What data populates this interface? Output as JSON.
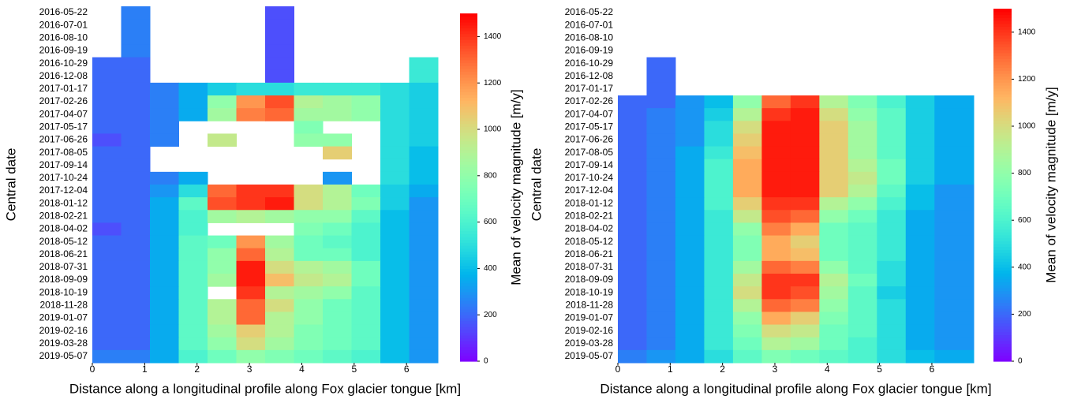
{
  "chart_data": [
    {
      "type": "heatmap",
      "colormap": "rainbow",
      "xlabel": "Distance along a longitudinal profile along Fox glacier tongue [km]",
      "ylabel": "Central date",
      "colorbar_label": "Mean of velocity magnitude [m/y]",
      "categories": [
        "2016-05-22",
        "2016-07-01",
        "2016-08-10",
        "2016-09-19",
        "2016-10-29",
        "2016-12-08",
        "2017-01-17",
        "2017-02-26",
        "2017-04-07",
        "2017-05-17",
        "2017-06-26",
        "2017-08-05",
        "2017-09-14",
        "2017-10-24",
        "2017-12-04",
        "2018-01-12",
        "2018-02-21",
        "2018-04-02",
        "2018-05-12",
        "2018-06-21",
        "2018-07-31",
        "2018-09-09",
        "2018-10-19",
        "2018-11-28",
        "2019-01-07",
        "2019-02-16",
        "2019-03-28",
        "2019-05-07"
      ],
      "x_edges": [
        0,
        0.55,
        1.1,
        1.65,
        2.2,
        2.75,
        3.3,
        3.85,
        4.4,
        4.95,
        5.5,
        6.05,
        6.6
      ],
      "xlim": [
        0,
        6.6
      ],
      "xticks": [
        0,
        1,
        2,
        3,
        4,
        5,
        6
      ],
      "zlim": [
        0,
        1500
      ],
      "zticks": [
        0,
        200,
        400,
        600,
        800,
        1000,
        1200,
        1400
      ],
      "values": [
        [
          null,
          250,
          null,
          null,
          null,
          null,
          150,
          null,
          null,
          null,
          null,
          null
        ],
        [
          null,
          250,
          null,
          null,
          null,
          null,
          150,
          null,
          null,
          null,
          null,
          null
        ],
        [
          null,
          250,
          null,
          null,
          null,
          null,
          150,
          null,
          null,
          null,
          null,
          null
        ],
        [
          null,
          250,
          null,
          null,
          null,
          null,
          150,
          null,
          null,
          null,
          null,
          null
        ],
        [
          200,
          200,
          null,
          null,
          null,
          null,
          150,
          null,
          null,
          null,
          null,
          550
        ],
        [
          200,
          200,
          null,
          null,
          null,
          null,
          150,
          null,
          null,
          null,
          null,
          550
        ],
        [
          200,
          200,
          250,
          350,
          450,
          500,
          500,
          550,
          550,
          550,
          500,
          450
        ],
        [
          200,
          200,
          250,
          350,
          800,
          1200,
          1350,
          900,
          850,
          800,
          500,
          450
        ],
        [
          200,
          200,
          250,
          350,
          850,
          1250,
          1300,
          850,
          850,
          800,
          500,
          450
        ],
        [
          200,
          200,
          250,
          null,
          null,
          null,
          null,
          750,
          null,
          null,
          500,
          450
        ],
        [
          150,
          200,
          250,
          null,
          950,
          null,
          null,
          800,
          800,
          null,
          500,
          450
        ],
        [
          200,
          200,
          null,
          null,
          null,
          null,
          null,
          null,
          1050,
          null,
          500,
          400
        ],
        [
          200,
          200,
          null,
          null,
          null,
          null,
          null,
          null,
          null,
          null,
          500,
          400
        ],
        [
          200,
          200,
          250,
          350,
          null,
          null,
          null,
          null,
          300,
          null,
          500,
          400
        ],
        [
          200,
          200,
          300,
          500,
          1300,
          1400,
          1400,
          1000,
          900,
          700,
          450,
          350
        ],
        [
          200,
          200,
          350,
          650,
          1350,
          1400,
          1450,
          1000,
          900,
          750,
          450,
          300
        ],
        [
          200,
          200,
          350,
          600,
          850,
          900,
          850,
          800,
          800,
          650,
          400,
          300
        ],
        [
          150,
          200,
          350,
          600,
          null,
          null,
          null,
          750,
          700,
          600,
          400,
          300
        ],
        [
          200,
          200,
          350,
          650,
          700,
          1200,
          850,
          700,
          650,
          600,
          400,
          300
        ],
        [
          200,
          200,
          350,
          650,
          800,
          1300,
          900,
          700,
          700,
          600,
          400,
          300
        ],
        [
          200,
          200,
          350,
          650,
          800,
          1450,
          1000,
          900,
          850,
          700,
          400,
          300
        ],
        [
          200,
          200,
          350,
          650,
          850,
          1450,
          1100,
          950,
          900,
          700,
          400,
          300
        ],
        [
          200,
          200,
          350,
          650,
          null,
          1400,
          900,
          850,
          800,
          650,
          400,
          300
        ],
        [
          200,
          200,
          350,
          650,
          900,
          1300,
          1000,
          800,
          700,
          650,
          400,
          300
        ],
        [
          200,
          200,
          350,
          650,
          900,
          1300,
          900,
          800,
          700,
          650,
          400,
          300
        ],
        [
          200,
          200,
          350,
          650,
          850,
          1050,
          900,
          750,
          700,
          650,
          400,
          300
        ],
        [
          200,
          200,
          350,
          650,
          800,
          1000,
          850,
          750,
          700,
          650,
          400,
          300
        ],
        [
          250,
          250,
          350,
          600,
          700,
          800,
          750,
          700,
          650,
          600,
          400,
          300
        ]
      ]
    },
    {
      "type": "heatmap",
      "colormap": "rainbow",
      "xlabel": "Distance along a longitudinal profile along Fox glacier tongue [km]",
      "ylabel": "Central date",
      "colorbar_label": "Mean of velocity magnitude [m/y]",
      "categories": [
        "2016-05-22",
        "2016-07-01",
        "2016-08-10",
        "2016-09-19",
        "2016-10-29",
        "2016-12-08",
        "2017-01-17",
        "2017-02-26",
        "2017-04-07",
        "2017-05-17",
        "2017-06-26",
        "2017-08-05",
        "2017-09-14",
        "2017-10-24",
        "2017-12-04",
        "2018-01-12",
        "2018-02-21",
        "2018-04-02",
        "2018-05-12",
        "2018-06-21",
        "2018-07-31",
        "2018-09-09",
        "2018-10-19",
        "2018-11-28",
        "2019-01-07",
        "2019-02-16",
        "2019-03-28",
        "2019-05-07"
      ],
      "x_edges": [
        0,
        0.55,
        1.1,
        1.65,
        2.2,
        2.75,
        3.3,
        3.85,
        4.4,
        4.95,
        5.5,
        6.05,
        6.8
      ],
      "xlim": [
        0,
        6.8
      ],
      "xticks": [
        0,
        1,
        2,
        3,
        4,
        5,
        6
      ],
      "zlim": [
        0,
        1500
      ],
      "zticks": [
        0,
        200,
        400,
        600,
        800,
        1000,
        1200,
        1400
      ],
      "values": [
        [
          null,
          null,
          null,
          null,
          null,
          null,
          null,
          null,
          null,
          null,
          null,
          null
        ],
        [
          null,
          null,
          null,
          null,
          null,
          null,
          null,
          null,
          null,
          null,
          null,
          null
        ],
        [
          null,
          null,
          null,
          null,
          null,
          null,
          null,
          null,
          null,
          null,
          null,
          null
        ],
        [
          null,
          null,
          null,
          null,
          null,
          null,
          null,
          null,
          null,
          null,
          null,
          null
        ],
        [
          null,
          200,
          null,
          null,
          null,
          null,
          null,
          null,
          null,
          null,
          null,
          null
        ],
        [
          null,
          200,
          null,
          null,
          null,
          null,
          null,
          null,
          null,
          null,
          null,
          null
        ],
        [
          null,
          200,
          null,
          null,
          null,
          null,
          null,
          null,
          null,
          null,
          null,
          null
        ],
        [
          200,
          200,
          300,
          400,
          800,
          1300,
          1400,
          900,
          750,
          600,
          450,
          350
        ],
        [
          200,
          250,
          300,
          450,
          900,
          1400,
          1450,
          1000,
          800,
          650,
          450,
          350
        ],
        [
          200,
          250,
          300,
          500,
          1000,
          1450,
          1450,
          1050,
          850,
          650,
          450,
          350
        ],
        [
          200,
          250,
          300,
          500,
          1050,
          1450,
          1450,
          1050,
          850,
          650,
          450,
          350
        ],
        [
          200,
          250,
          350,
          550,
          1100,
          1450,
          1450,
          1050,
          850,
          650,
          450,
          350
        ],
        [
          200,
          250,
          350,
          600,
          1150,
          1450,
          1450,
          1050,
          900,
          700,
          450,
          350
        ],
        [
          200,
          250,
          350,
          600,
          1150,
          1450,
          1450,
          1050,
          950,
          700,
          450,
          350
        ],
        [
          200,
          250,
          350,
          600,
          1150,
          1450,
          1450,
          1050,
          900,
          650,
          400,
          300
        ],
        [
          200,
          250,
          350,
          600,
          1050,
          1400,
          1400,
          900,
          800,
          600,
          400,
          300
        ],
        [
          200,
          250,
          350,
          550,
          950,
          1350,
          1300,
          800,
          700,
          550,
          350,
          300
        ],
        [
          200,
          250,
          350,
          550,
          800,
          1250,
          1150,
          700,
          650,
          550,
          350,
          300
        ],
        [
          200,
          250,
          350,
          550,
          750,
          1150,
          1050,
          700,
          650,
          550,
          350,
          300
        ],
        [
          200,
          250,
          350,
          550,
          750,
          1150,
          1100,
          700,
          650,
          550,
          350,
          300
        ],
        [
          200,
          250,
          350,
          550,
          850,
          1300,
          1250,
          800,
          650,
          500,
          350,
          300
        ],
        [
          200,
          250,
          350,
          550,
          950,
          1400,
          1400,
          900,
          700,
          500,
          350,
          300
        ],
        [
          200,
          250,
          350,
          550,
          1000,
          1400,
          1350,
          850,
          650,
          450,
          350,
          300
        ],
        [
          200,
          250,
          350,
          550,
          900,
          1300,
          1250,
          800,
          650,
          500,
          350,
          300
        ],
        [
          200,
          250,
          350,
          550,
          800,
          1150,
          1050,
          750,
          650,
          500,
          350,
          300
        ],
        [
          200,
          250,
          350,
          550,
          750,
          1000,
          950,
          700,
          650,
          500,
          350,
          300
        ],
        [
          200,
          250,
          350,
          550,
          700,
          900,
          850,
          700,
          600,
          500,
          350,
          300
        ],
        [
          250,
          300,
          350,
          500,
          650,
          750,
          700,
          650,
          600,
          500,
          400,
          350
        ]
      ]
    }
  ]
}
